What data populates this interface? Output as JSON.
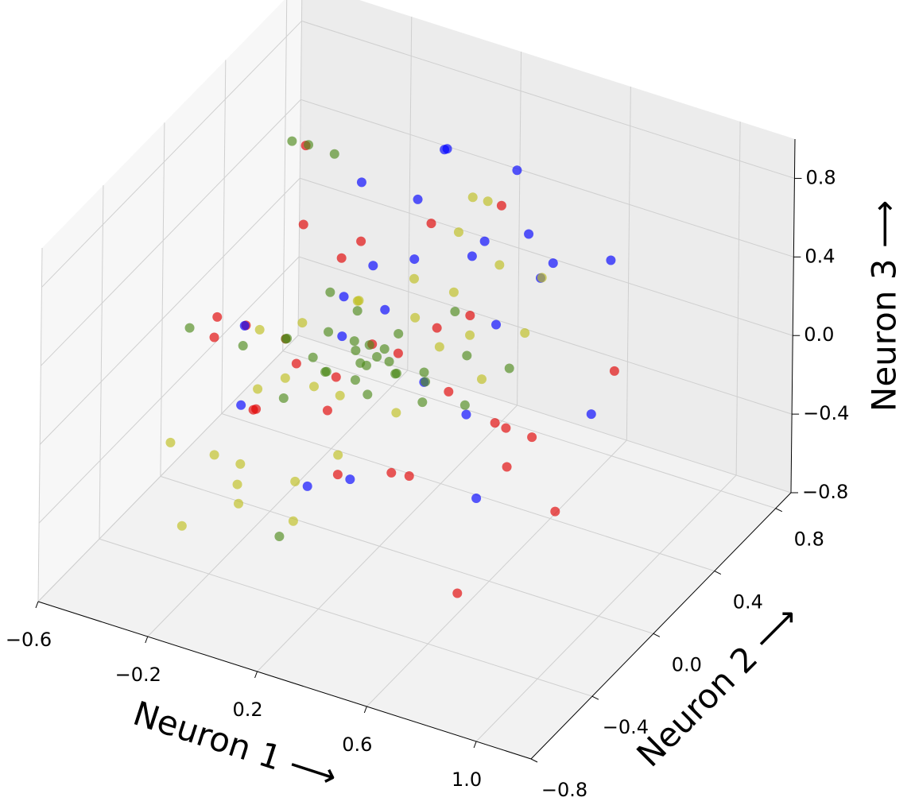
{
  "chart_data": {
    "type": "scatter3d",
    "xlabel": "Neuron 1 ⟶",
    "ylabel": "Neuron 2 ⟶",
    "zlabel": "Neuron 3 ⟶",
    "xlim": [
      -0.6,
      1.2
    ],
    "ylim": [
      -0.8,
      0.9
    ],
    "zlim": [
      -0.8,
      1.0
    ],
    "xticks": [
      {
        "value": -0.6,
        "label": "−0.6"
      },
      {
        "value": -0.2,
        "label": "−0.2"
      },
      0.2,
      0.6,
      {
        "value": 1.0,
        "label": "1.0"
      }
    ],
    "yticks": [
      {
        "value": -0.8,
        "label": "−0.8"
      },
      {
        "value": -0.4,
        "label": "−0.4"
      },
      {
        "value": 0.0,
        "label": "0.0"
      },
      0.4,
      0.8
    ],
    "zticks": [
      {
        "value": -0.8,
        "label": "−0.8"
      },
      {
        "value": -0.4,
        "label": "−0.4"
      },
      {
        "value": 0.0,
        "label": "0.0"
      },
      0.4,
      0.8
    ],
    "grid": true,
    "series": [
      {
        "color": "#e00000",
        "x": [
          -0.35,
          -0.3,
          -0.25,
          -0.2,
          -0.2,
          -0.15,
          -0.1,
          -0.1,
          -0.05,
          0.0,
          0.0,
          0.05,
          0.1,
          0.1,
          0.15,
          0.2,
          0.25,
          0.3,
          0.35,
          0.4,
          0.45,
          0.5,
          0.55,
          0.6,
          0.65,
          0.7,
          0.8,
          0.75,
          -0.4,
          0.3
        ],
        "y": [
          0.1,
          -0.2,
          0.3,
          -0.1,
          0.2,
          0.0,
          -0.3,
          0.4,
          0.1,
          -0.2,
          0.3,
          0.0,
          0.5,
          -0.1,
          0.2,
          -0.3,
          0.1,
          0.4,
          -0.2,
          0.0,
          0.3,
          -0.1,
          0.2,
          0.1,
          -0.3,
          0.25,
          0.45,
          0.0,
          0.0,
          0.6
        ],
        "z": [
          0.0,
          0.2,
          0.8,
          -0.2,
          0.5,
          0.1,
          0.0,
          0.3,
          -0.3,
          0.2,
          -0.1,
          0.6,
          0.4,
          -0.4,
          0.0,
          0.3,
          -0.5,
          0.1,
          -0.2,
          0.4,
          -0.3,
          0.2,
          -0.4,
          -0.1,
          -0.6,
          -0.6,
          0.0,
          0.0,
          0.1,
          0.5
        ]
      },
      {
        "color": "#0000ff",
        "x": [
          -0.3,
          -0.2,
          -0.1,
          0.0,
          0.05,
          0.1,
          0.1,
          0.15,
          0.2,
          0.2,
          0.25,
          0.3,
          0.3,
          0.35,
          0.4,
          0.4,
          0.45,
          0.5,
          0.55,
          0.6,
          0.7,
          0.8,
          0.1,
          0.0,
          -0.05
        ],
        "y": [
          0.0,
          -0.2,
          0.4,
          0.3,
          0.5,
          0.2,
          0.6,
          0.3,
          0.4,
          -0.2,
          0.5,
          0.1,
          0.7,
          0.4,
          0.2,
          0.6,
          0.3,
          0.5,
          0.0,
          0.4,
          0.6,
          0.3,
          -0.3,
          0.1,
          0.2
        ],
        "z": [
          0.1,
          -0.1,
          0.6,
          0.3,
          0.5,
          0.2,
          0.7,
          0.4,
          0.9,
          -0.3,
          0.3,
          0.0,
          0.6,
          0.5,
          -0.2,
          0.4,
          0.2,
          0.3,
          -0.4,
          0.5,
          0.4,
          -0.1,
          -0.3,
          0.1,
          0.2
        ]
      },
      {
        "color": "#bfbf1f",
        "x": [
          -0.4,
          -0.35,
          -0.3,
          -0.25,
          -0.2,
          -0.2,
          -0.15,
          -0.1,
          -0.1,
          -0.05,
          0.0,
          0.0,
          0.05,
          0.1,
          0.1,
          0.15,
          0.2,
          0.2,
          0.25,
          0.3,
          0.3,
          0.35,
          0.4,
          0.45,
          0.5,
          -0.3,
          -0.15,
          0.05,
          0.35,
          0.25
        ],
        "y": [
          -0.3,
          -0.1,
          -0.4,
          0.0,
          -0.2,
          0.2,
          -0.3,
          0.1,
          -0.4,
          0.3,
          -0.2,
          0.2,
          0.0,
          0.4,
          -0.1,
          0.3,
          0.5,
          0.1,
          0.6,
          0.2,
          0.4,
          0.5,
          0.3,
          0.6,
          0.4,
          0.1,
          0.0,
          -0.3,
          0.2,
          0.5
        ],
        "z": [
          -0.3,
          -0.5,
          -0.6,
          -0.2,
          -0.4,
          0.0,
          -0.5,
          -0.2,
          -0.3,
          0.1,
          -0.4,
          0.2,
          -0.1,
          0.0,
          -0.3,
          0.3,
          0.4,
          -0.2,
          0.5,
          0.1,
          0.0,
          0.3,
          -0.1,
          0.2,
          0.1,
          0.0,
          -0.1,
          -0.5,
          0.4,
          0.6
        ]
      },
      {
        "color": "#4f8a1b",
        "x": [
          -0.5,
          -0.3,
          -0.25,
          -0.2,
          -0.15,
          -0.1,
          -0.1,
          -0.05,
          0.0,
          0.0,
          0.05,
          0.05,
          0.1,
          0.1,
          0.1,
          0.15,
          0.15,
          0.2,
          0.2,
          0.25,
          0.25,
          0.3,
          0.3,
          0.35,
          0.4,
          0.45,
          0.5,
          -0.35,
          -0.2,
          0.0,
          0.1,
          0.2,
          0.05,
          -0.05,
          0.15
        ],
        "y": [
          0.0,
          0.3,
          -0.1,
          0.1,
          0.0,
          0.2,
          -0.1,
          0.1,
          0.0,
          0.2,
          0.1,
          -0.1,
          0.0,
          0.2,
          0.1,
          0.0,
          0.2,
          0.1,
          -0.1,
          0.0,
          0.2,
          0.1,
          0.3,
          0.0,
          0.2,
          0.1,
          0.3,
          0.5,
          0.4,
          -0.3,
          0.15,
          0.05,
          0.1,
          0.0,
          -0.05
        ],
        "z": [
          0.0,
          0.8,
          0.1,
          0.0,
          0.1,
          0.2,
          -0.1,
          0.1,
          0.0,
          0.15,
          0.05,
          0.1,
          0.2,
          0.0,
          0.1,
          -0.05,
          0.1,
          0.0,
          0.2,
          0.1,
          -0.1,
          0.05,
          0.2,
          0.0,
          0.1,
          -0.05,
          0.0,
          0.6,
          0.7,
          -0.6,
          0.0,
          0.1,
          -0.1,
          0.05,
          0.15
        ]
      }
    ]
  }
}
